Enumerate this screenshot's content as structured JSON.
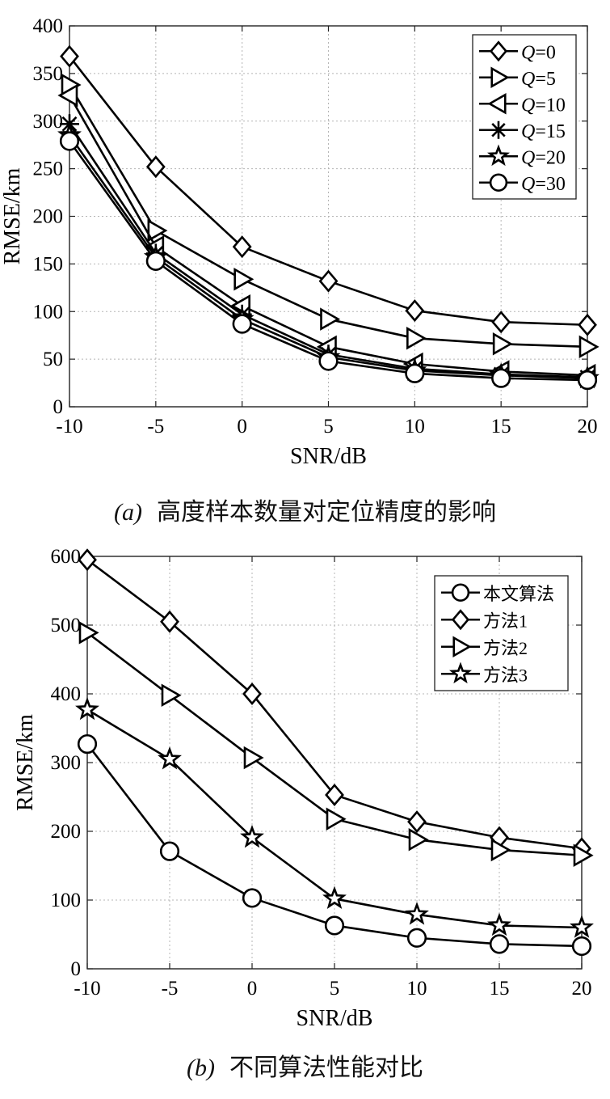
{
  "chart_data": [
    {
      "type": "line",
      "xlabel": "SNR/dB",
      "ylabel": "RMSE/km",
      "xlim": [
        -10,
        20
      ],
      "ylim": [
        0,
        400
      ],
      "xticks": [
        -10,
        -5,
        0,
        5,
        10,
        15,
        20
      ],
      "yticks": [
        0,
        50,
        100,
        150,
        200,
        250,
        300,
        350,
        400
      ],
      "x_tick_labels": [
        "-10",
        "-5",
        "0",
        "5",
        "10",
        "15",
        "20"
      ],
      "y_tick_labels": [
        "0",
        "50",
        "100",
        "150",
        "200",
        "250",
        "300",
        "350",
        "400"
      ],
      "grid": true,
      "legend_position": "top-right",
      "x": [
        -10,
        -5,
        0,
        5,
        10,
        15,
        20
      ],
      "series": [
        {
          "name_prefix": "Q",
          "name_suffix": "=0",
          "marker": "diamond",
          "values": [
            368,
            252,
            168,
            132,
            101,
            89,
            86
          ]
        },
        {
          "name_prefix": "Q",
          "name_suffix": "=5",
          "marker": "triangle-right",
          "values": [
            338,
            185,
            134,
            92,
            72,
            66,
            63
          ]
        },
        {
          "name_prefix": "Q",
          "name_suffix": "=10",
          "marker": "triangle-left",
          "values": [
            327,
            168,
            106,
            63,
            45,
            37,
            33
          ]
        },
        {
          "name_prefix": "Q",
          "name_suffix": "=15",
          "marker": "asterisk",
          "values": [
            297,
            161,
            97,
            55,
            40,
            34,
            31
          ]
        },
        {
          "name_prefix": "Q",
          "name_suffix": "=20",
          "marker": "star",
          "values": [
            285,
            157,
            92,
            52,
            38,
            33,
            30
          ]
        },
        {
          "name_prefix": "Q",
          "name_suffix": "=30",
          "marker": "circle",
          "values": [
            279,
            153,
            87,
            48,
            35,
            30,
            28
          ]
        }
      ],
      "caption": {
        "tag": "(a)",
        "text": "高度样本数量对定位精度的影响"
      }
    },
    {
      "type": "line",
      "xlabel": "SNR/dB",
      "ylabel": "RMSE/km",
      "xlim": [
        -10,
        20
      ],
      "ylim": [
        0,
        600
      ],
      "xticks": [
        -10,
        -5,
        0,
        5,
        10,
        15,
        20
      ],
      "yticks": [
        0,
        100,
        200,
        300,
        400,
        500,
        600
      ],
      "x_tick_labels": [
        "-10",
        "-5",
        "0",
        "5",
        "10",
        "15",
        "20"
      ],
      "y_tick_labels": [
        "0",
        "100",
        "200",
        "300",
        "400",
        "500",
        "600"
      ],
      "grid": true,
      "legend_position": "top-right",
      "x": [
        -10,
        -5,
        0,
        5,
        10,
        15,
        20
      ],
      "series": [
        {
          "name": "本文算法",
          "marker": "circle",
          "values": [
            327,
            171,
            103,
            63,
            45,
            36,
            33
          ]
        },
        {
          "name": "方法1",
          "marker": "diamond",
          "values": [
            595,
            505,
            400,
            253,
            214,
            191,
            175
          ]
        },
        {
          "name": "方法2",
          "marker": "triangle-right",
          "values": [
            489,
            398,
            307,
            218,
            188,
            173,
            165
          ]
        },
        {
          "name": "方法3",
          "marker": "star",
          "values": [
            377,
            305,
            191,
            102,
            79,
            63,
            60
          ]
        }
      ],
      "caption": {
        "tag": "(b)",
        "text": "不同算法性能对比"
      }
    }
  ]
}
